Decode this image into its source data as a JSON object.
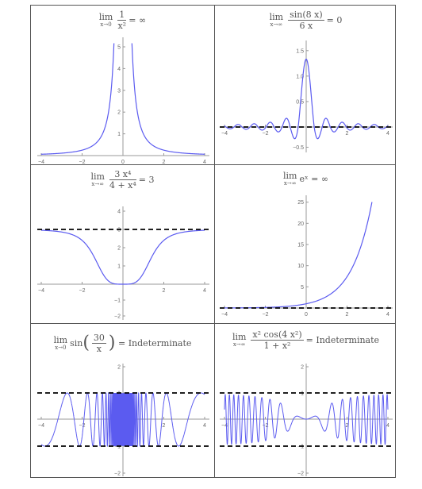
{
  "colors": {
    "curve": "#5b5bf0",
    "axis": "#999999",
    "asymptote": "#000000",
    "frame": "#555555",
    "tick_text": "#666666"
  },
  "panels": [
    {
      "lim_word": "lim",
      "lim_sub": "x→0",
      "num": "1",
      "den": "x²",
      "eq": "= ∞",
      "x_ticks": [
        "−4",
        "−2",
        "0",
        "2",
        "4"
      ],
      "y_ticks": [
        "1",
        "2",
        "3",
        "4",
        "5"
      ]
    },
    {
      "lim_word": "lim",
      "lim_sub": "x→∞",
      "num": "sin(8 x)",
      "den": "6 x",
      "eq": "= 0",
      "x_ticks": [
        "−4",
        "−2",
        "2",
        "4"
      ],
      "y_ticks": [
        "−0.5",
        "0.5",
        "1.0",
        "1.5"
      ]
    },
    {
      "lim_word": "lim",
      "lim_sub": "x→∞",
      "num": "3 x⁴",
      "den": "4 + x⁴",
      "eq": "= 3",
      "x_ticks": [
        "−4",
        "−2",
        "2",
        "4"
      ],
      "y_ticks": [
        "−2",
        "−1",
        "1",
        "2",
        "3",
        "4"
      ]
    },
    {
      "lim_word": "lim",
      "lim_sub": "x→∞",
      "expr": "eˣ",
      "eq": "= ∞",
      "x_ticks": [
        "−4",
        "−2",
        "0",
        "2",
        "4"
      ],
      "y_ticks": [
        "5",
        "10",
        "15",
        "20",
        "25"
      ]
    },
    {
      "lim_word": "lim",
      "lim_sub": "x→0",
      "fn": "sin",
      "num": "30",
      "den": "x",
      "eq": "= Indeterminate",
      "x_ticks": [
        "−4",
        "−2",
        "2",
        "4"
      ],
      "y_ticks": [
        "−2",
        "−1",
        "1",
        "2"
      ]
    },
    {
      "lim_word": "lim",
      "lim_sub": "x→∞",
      "num": "x² cos(4 x²)",
      "den": "1 + x²",
      "eq": "= Indeterminate",
      "x_ticks": [
        "−4",
        "−2",
        "2",
        "4"
      ],
      "y_ticks": [
        "−2",
        "−1",
        "1",
        "2"
      ]
    }
  ],
  "chart_data": [
    {
      "type": "line",
      "function": "1/x^2",
      "limit_point": "x→0",
      "limit_value": "∞",
      "xlim": [
        -4.2,
        4.2
      ],
      "ylim": [
        0,
        5
      ],
      "asymptotes": [],
      "series": [
        {
          "x": [
            -4,
            -3,
            -2,
            -1,
            -0.75,
            -0.5,
            -0.45,
            0.45,
            0.5,
            0.75,
            1,
            2,
            3,
            4
          ],
          "y": [
            0.0625,
            0.111,
            0.25,
            1,
            1.78,
            4,
            4.94,
            4.94,
            4,
            1.78,
            1,
            0.25,
            0.111,
            0.0625
          ]
        }
      ]
    },
    {
      "type": "line",
      "function": "sin(8x)/(6x)",
      "limit_point": "x→∞",
      "limit_value": "0",
      "xlim": [
        -4.2,
        4.2
      ],
      "ylim": [
        -0.55,
        1.55
      ],
      "asymptotes": [
        0
      ],
      "series": [
        {
          "x": [
            -4,
            -2,
            -0.6,
            -0.36,
            0,
            0.36,
            0.6,
            2,
            4
          ],
          "y": [
            0.023,
            -0.025,
            0.276,
            -0.1,
            1.333,
            -0.1,
            0.276,
            -0.025,
            0.023
          ]
        }
      ]
    },
    {
      "type": "line",
      "function": "3x^4/(4+x^4)",
      "limit_point": "x→∞",
      "limit_value": "3",
      "xlim": [
        -4.2,
        4.2
      ],
      "ylim": [
        -2.1,
        4.1
      ],
      "asymptotes": [
        3
      ],
      "series": [
        {
          "x": [
            -4,
            -3,
            -2,
            -1.5,
            -1,
            -0.5,
            0,
            0.5,
            1,
            1.5,
            2,
            3,
            4
          ],
          "y": [
            2.953,
            2.859,
            2.4,
            1.676,
            0.6,
            0.046,
            0,
            0.046,
            0.6,
            1.676,
            2.4,
            2.859,
            2.953
          ]
        }
      ]
    },
    {
      "type": "line",
      "function": "e^x",
      "limit_point": "x→∞",
      "limit_value": "∞",
      "xlim": [
        -4.2,
        4.2
      ],
      "ylim": [
        -0.5,
        27
      ],
      "asymptotes": [
        0
      ],
      "series": [
        {
          "x": [
            -4,
            -2,
            0,
            1,
            2,
            3,
            3.2
          ],
          "y": [
            0.018,
            0.135,
            1,
            2.718,
            7.389,
            20.09,
            24.5
          ]
        }
      ]
    },
    {
      "type": "line",
      "function": "sin(30/x)",
      "limit_point": "x→0",
      "limit_value": "Indeterminate",
      "xlim": [
        -4.2,
        4.2
      ],
      "ylim": [
        -2.1,
        2.1
      ],
      "asymptotes": [
        1,
        -1
      ],
      "series": [
        {
          "x": [
            -4,
            -2,
            -1,
            1,
            2,
            4
          ],
          "y": [
            -0.938,
            -0.65,
            0.988,
            -0.988,
            0.65,
            0.938
          ]
        }
      ]
    },
    {
      "type": "line",
      "function": "x^2 cos(4x^2)/(1+x^2)",
      "limit_point": "x→∞",
      "limit_value": "Indeterminate",
      "xlim": [
        -4.2,
        4.2
      ],
      "ylim": [
        -2.1,
        2.1
      ],
      "asymptotes": [
        1,
        -1
      ],
      "series": [
        {
          "x": [
            -4,
            -2,
            -1,
            0,
            1,
            2,
            4
          ],
          "y": [
            0.8,
            -0.77,
            -0.33,
            0,
            -0.33,
            -0.77,
            0.8
          ]
        }
      ]
    }
  ]
}
